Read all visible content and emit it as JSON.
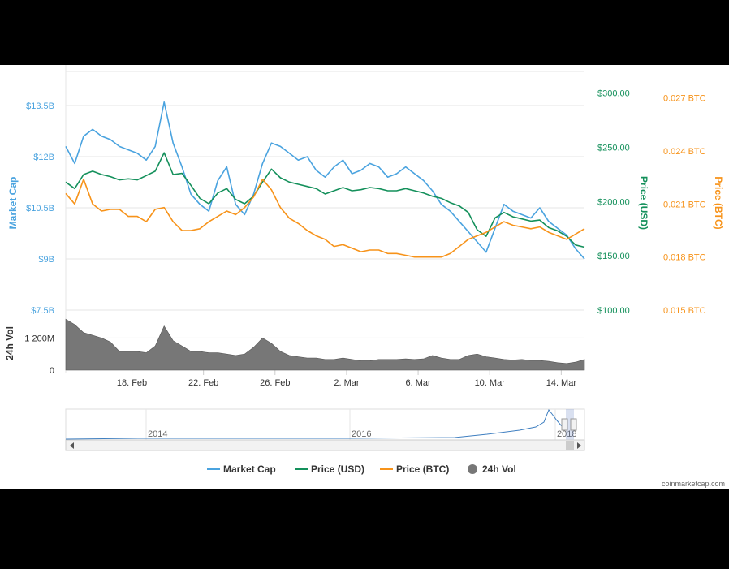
{
  "chart_data": {
    "type": "line",
    "x_ticks": [
      "18. Feb",
      "22. Feb",
      "26. Feb",
      "2. Mar",
      "6. Mar",
      "10. Mar",
      "14. Mar"
    ],
    "left_axis": {
      "label": "Market Cap",
      "ticks": [
        "$13.5B",
        "$12B",
        "$10.5B",
        "$9B",
        "$7.5B"
      ],
      "values": [
        13.5,
        12,
        10.5,
        9,
        7.5
      ],
      "color": "#4aa3df"
    },
    "right_axis_usd": {
      "label": "Price (USD)",
      "ticks": [
        "$300.00",
        "$250.00",
        "$200.00",
        "$150.00",
        "$100.00"
      ],
      "values": [
        300,
        250,
        200,
        150,
        100
      ],
      "color": "#14905b"
    },
    "right_axis_btc": {
      "label": "Price (BTC)",
      "ticks": [
        "0.027 BTC",
        "0.024 BTC",
        "0.021 BTC",
        "0.018 BTC",
        "0.015 BTC"
      ],
      "values": [
        0.027,
        0.024,
        0.021,
        0.018,
        0.015
      ],
      "color": "#f7931a"
    },
    "volume_axis": {
      "label": "24h Vol",
      "ticks": [
        "1 200M",
        "0"
      ],
      "values": [
        1200,
        0
      ],
      "color": "#777777"
    },
    "series": [
      {
        "name": "Market Cap",
        "axis": "left",
        "unit": "B USD",
        "x": [
          15.3,
          15.8,
          16.3,
          16.8,
          17.3,
          17.8,
          18.3,
          18.8,
          19.3,
          19.8,
          20.3,
          20.8,
          21.3,
          21.8,
          22.3,
          22.8,
          23.3,
          23.8,
          24.3,
          24.8,
          25.3,
          25.8,
          26.3,
          26.8,
          27.3,
          27.8,
          28.3,
          28.8,
          29.3,
          29.8,
          30.3,
          30.8,
          31.3,
          31.8,
          32.3,
          32.8,
          33.3,
          33.8,
          34.3,
          34.8,
          35.3,
          35.8,
          36.3,
          36.8,
          37.3,
          37.8,
          38.3,
          38.8,
          39.3,
          39.8,
          40.3,
          40.8,
          41.3,
          41.8,
          42.3,
          42.8,
          43.3,
          43.8,
          44.3
        ],
        "values": [
          12.3,
          11.8,
          12.6,
          12.8,
          12.6,
          12.5,
          12.3,
          12.2,
          12.1,
          11.9,
          12.3,
          13.6,
          12.4,
          11.7,
          10.9,
          10.6,
          10.4,
          11.3,
          11.7,
          10.6,
          10.3,
          10.9,
          11.8,
          12.4,
          12.3,
          12.1,
          11.9,
          12.0,
          11.6,
          11.4,
          11.7,
          11.9,
          11.5,
          11.6,
          11.8,
          11.7,
          11.4,
          11.5,
          11.7,
          11.5,
          11.3,
          11.0,
          10.6,
          10.4,
          10.1,
          9.8,
          9.5,
          9.2,
          9.9,
          10.6,
          10.4,
          10.3,
          10.2,
          10.5,
          10.1,
          9.9,
          9.7,
          9.3,
          9.0
        ]
      },
      {
        "name": "Price (USD)",
        "axis": "right_usd",
        "unit": "USD",
        "x": [
          15.3,
          15.8,
          16.3,
          16.8,
          17.3,
          17.8,
          18.3,
          18.8,
          19.3,
          19.8,
          20.3,
          20.8,
          21.3,
          21.8,
          22.3,
          22.8,
          23.3,
          23.8,
          24.3,
          24.8,
          25.3,
          25.8,
          26.3,
          26.8,
          27.3,
          27.8,
          28.3,
          28.8,
          29.3,
          29.8,
          30.3,
          30.8,
          31.3,
          31.8,
          32.3,
          32.8,
          33.3,
          33.8,
          34.3,
          34.8,
          35.3,
          35.8,
          36.3,
          36.8,
          37.3,
          37.8,
          38.3,
          38.8,
          39.3,
          39.8,
          40.3,
          40.8,
          41.3,
          41.8,
          42.3,
          42.8,
          43.3,
          43.8,
          44.3
        ],
        "values": [
          218,
          212,
          225,
          228,
          225,
          223,
          220,
          221,
          220,
          224,
          228,
          245,
          225,
          226,
          215,
          203,
          198,
          208,
          212,
          202,
          198,
          205,
          218,
          230,
          222,
          218,
          216,
          214,
          212,
          207,
          210,
          213,
          210,
          211,
          213,
          212,
          210,
          210,
          212,
          210,
          208,
          205,
          203,
          199,
          196,
          190,
          174,
          168,
          185,
          190,
          186,
          184,
          182,
          183,
          176,
          173,
          168,
          160,
          158
        ]
      },
      {
        "name": "Price (BTC)",
        "axis": "right_btc",
        "unit": "BTC",
        "x": [
          15.3,
          15.8,
          16.3,
          16.8,
          17.3,
          17.8,
          18.3,
          18.8,
          19.3,
          19.8,
          20.3,
          20.8,
          21.3,
          21.8,
          22.3,
          22.8,
          23.3,
          23.8,
          24.3,
          24.8,
          25.3,
          25.8,
          26.3,
          26.8,
          27.3,
          27.8,
          28.3,
          28.8,
          29.3,
          29.8,
          30.3,
          30.8,
          31.3,
          31.8,
          32.3,
          32.8,
          33.3,
          33.8,
          34.3,
          34.8,
          35.3,
          35.8,
          36.3,
          36.8,
          37.3,
          37.8,
          38.3,
          38.8,
          39.3,
          39.8,
          40.3,
          40.8,
          41.3,
          41.8,
          42.3,
          42.8,
          43.3,
          43.8,
          44.3
        ],
        "values": [
          0.0216,
          0.021,
          0.0224,
          0.021,
          0.0206,
          0.0207,
          0.0207,
          0.0203,
          0.0203,
          0.02,
          0.0207,
          0.0208,
          0.02,
          0.0195,
          0.0195,
          0.0196,
          0.02,
          0.0203,
          0.0206,
          0.0204,
          0.0208,
          0.0214,
          0.0224,
          0.0218,
          0.0208,
          0.0202,
          0.0199,
          0.0195,
          0.0192,
          0.019,
          0.0186,
          0.0187,
          0.0185,
          0.0183,
          0.0184,
          0.0184,
          0.0182,
          0.0182,
          0.0181,
          0.018,
          0.018,
          0.018,
          0.018,
          0.0182,
          0.0186,
          0.019,
          0.0192,
          0.0194,
          0.0197,
          0.02,
          0.0198,
          0.0197,
          0.0196,
          0.0197,
          0.0194,
          0.0192,
          0.019,
          0.0193,
          0.0196
        ]
      },
      {
        "name": "24h Vol",
        "axis": "volume",
        "type": "area",
        "unit": "M USD",
        "x": [
          15.3,
          15.8,
          16.3,
          16.8,
          17.3,
          17.8,
          18.3,
          18.8,
          19.3,
          19.8,
          20.3,
          20.8,
          21.3,
          21.8,
          22.3,
          22.8,
          23.3,
          23.8,
          24.3,
          24.8,
          25.3,
          25.8,
          26.3,
          26.8,
          27.3,
          27.8,
          28.3,
          28.8,
          29.3,
          29.8,
          30.3,
          30.8,
          31.3,
          31.8,
          32.3,
          32.8,
          33.3,
          33.8,
          34.3,
          34.8,
          35.3,
          35.8,
          36.3,
          36.8,
          37.3,
          37.8,
          38.3,
          38.8,
          39.3,
          39.8,
          40.3,
          40.8,
          41.3,
          41.8,
          42.3,
          42.8,
          43.3,
          43.8,
          44.3
        ],
        "values": [
          1900,
          1700,
          1400,
          1300,
          1200,
          1050,
          700,
          700,
          700,
          650,
          900,
          1650,
          1100,
          900,
          700,
          700,
          650,
          650,
          600,
          550,
          600,
          850,
          1200,
          1000,
          700,
          550,
          500,
          450,
          450,
          400,
          400,
          450,
          400,
          350,
          350,
          400,
          400,
          400,
          420,
          400,
          420,
          550,
          450,
          400,
          400,
          550,
          600,
          500,
          450,
          400,
          380,
          400,
          360,
          360,
          330,
          280,
          250,
          300,
          400
        ]
      }
    ],
    "navigator": {
      "x_ticks": [
        "2014",
        "2016",
        "2018"
      ]
    },
    "legend": {
      "position": "bottom",
      "items": [
        {
          "name": "Market Cap",
          "color": "#4aa3df",
          "symbol": "line"
        },
        {
          "name": "Price (USD)",
          "color": "#14905b",
          "symbol": "line"
        },
        {
          "name": "Price (BTC)",
          "color": "#f7931a",
          "symbol": "line"
        },
        {
          "name": "24h Vol",
          "color": "#777777",
          "symbol": "circle"
        }
      ]
    },
    "credit": "coinmarketcap.com",
    "grid": true
  }
}
